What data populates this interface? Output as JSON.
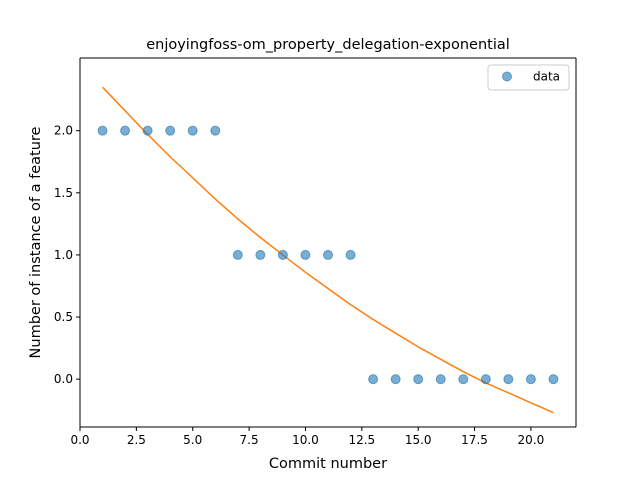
{
  "chart_data": {
    "type": "scatter",
    "title": "enjoyingfoss-om_property_delegation-exponential",
    "xlabel": "Commit number",
    "ylabel": "Number of instance of a feature",
    "xlim": [
      0.0,
      22.0
    ],
    "ylim": [
      -0.385,
      2.585
    ],
    "x_ticks": [
      0.0,
      2.5,
      5.0,
      7.5,
      10.0,
      12.5,
      15.0,
      17.5,
      20.0
    ],
    "x_tick_labels": [
      "0.0",
      "2.5",
      "5.0",
      "7.5",
      "10.0",
      "12.5",
      "15.0",
      "17.5",
      "20.0"
    ],
    "y_ticks": [
      0.0,
      0.5,
      1.0,
      1.5,
      2.0
    ],
    "y_tick_labels": [
      "0.0",
      "0.5",
      "1.0",
      "1.5",
      "2.0"
    ],
    "grid": false,
    "legend_position": "top-right",
    "series": [
      {
        "name": "data",
        "kind": "scatter",
        "color": "#1f77b4",
        "x": [
          1,
          2,
          3,
          4,
          5,
          6,
          7,
          8,
          9,
          10,
          11,
          12,
          13,
          14,
          15,
          16,
          17,
          18,
          19,
          20,
          21
        ],
        "y": [
          2,
          2,
          2,
          2,
          2,
          2,
          1,
          1,
          1,
          1,
          1,
          1,
          0,
          0,
          0,
          0,
          0,
          0,
          0,
          0,
          0
        ]
      },
      {
        "kind": "line",
        "color": "#ff7f0e",
        "x": [
          1,
          2,
          3,
          4,
          5,
          6,
          7,
          8,
          9,
          10,
          11,
          12,
          13,
          14,
          15,
          16,
          17,
          18,
          19,
          20,
          21
        ],
        "y": [
          2.35,
          2.16,
          1.97,
          1.79,
          1.62,
          1.45,
          1.29,
          1.14,
          1.0,
          0.86,
          0.73,
          0.6,
          0.48,
          0.37,
          0.26,
          0.16,
          0.06,
          -0.03,
          -0.11,
          -0.19,
          -0.27
        ]
      }
    ]
  }
}
